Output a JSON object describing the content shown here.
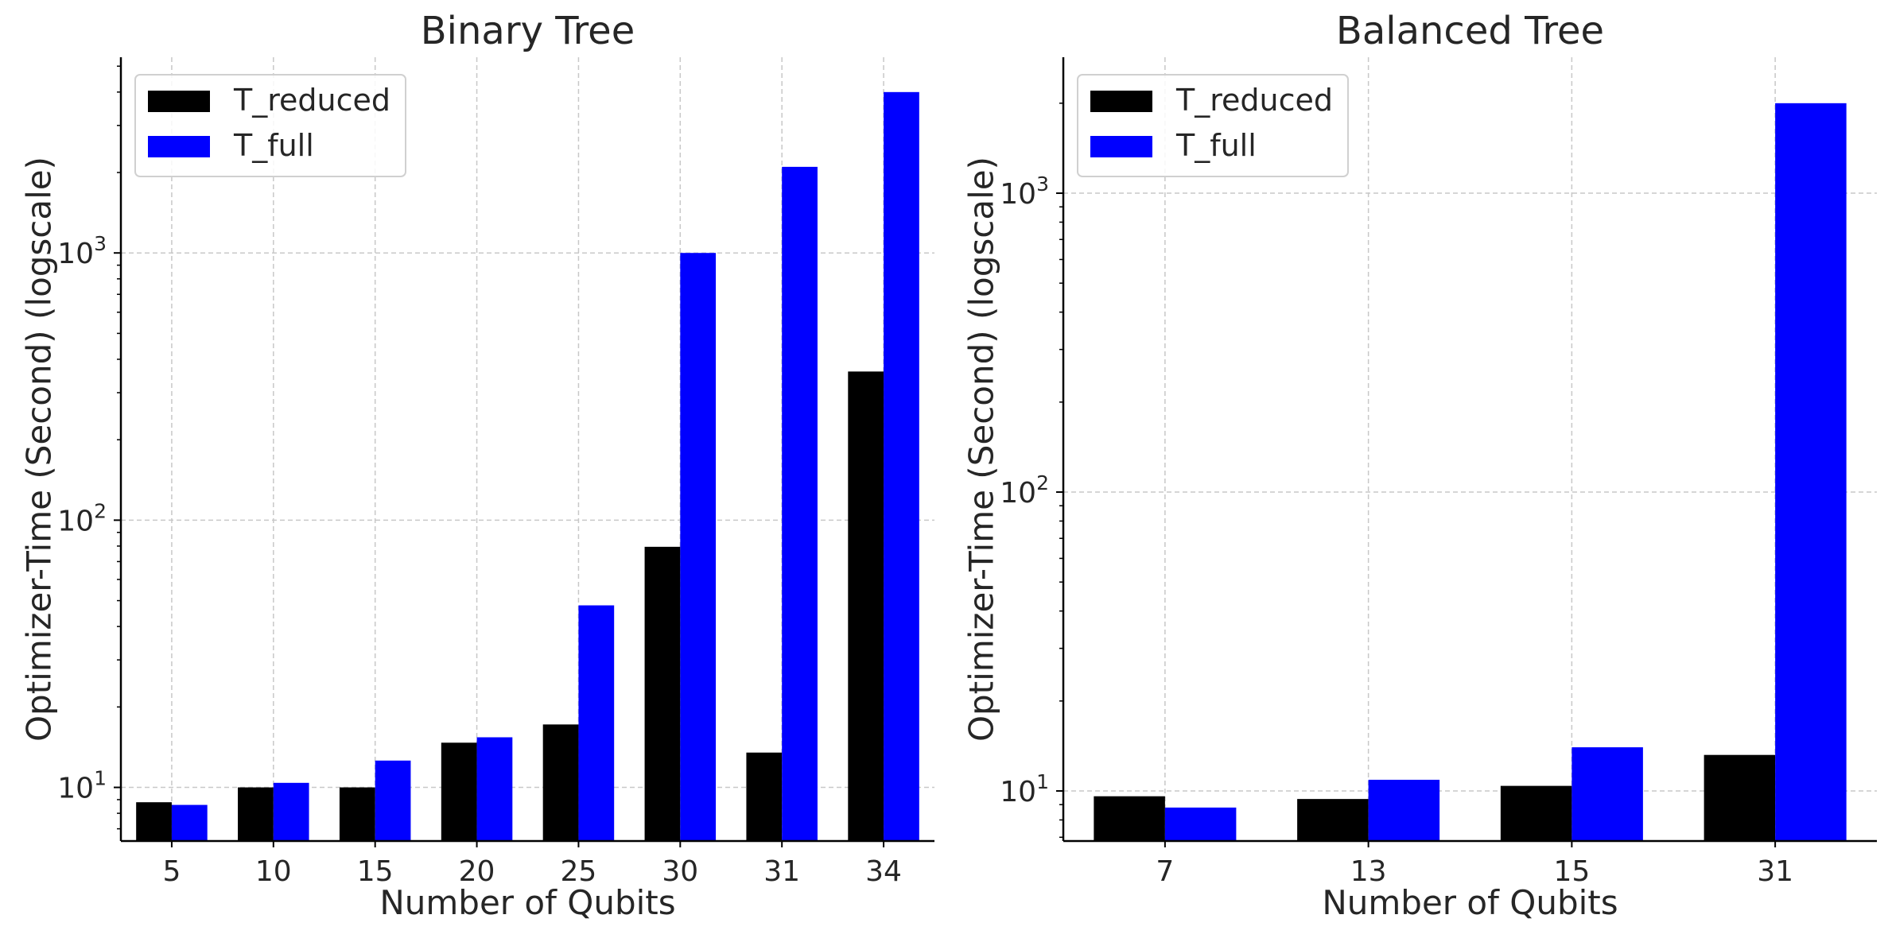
{
  "chart_data": [
    {
      "type": "bar",
      "title": "Binary Tree",
      "xlabel": "Number of Qubits",
      "ylabel": "Optimizer-Time (Second) (logscale)",
      "yscale": "log",
      "ylim": [
        6.3,
        5400
      ],
      "y_ticks": [
        10,
        100,
        1000
      ],
      "y_tick_labels": [
        {
          "base": "10",
          "exp": "1"
        },
        {
          "base": "10",
          "exp": "2"
        },
        {
          "base": "10",
          "exp": "3"
        }
      ],
      "grid": true,
      "legend": "top-left",
      "categories": [
        "5",
        "10",
        "15",
        "20",
        "25",
        "30",
        "31",
        "34"
      ],
      "series": [
        {
          "name": "T_reduced",
          "color": "#000000",
          "values": [
            8.8,
            10.0,
            10.0,
            14.7,
            17.2,
            79.5,
            13.5,
            360
          ]
        },
        {
          "name": "T_full",
          "color": "#0000ff",
          "values": [
            8.6,
            10.4,
            12.6,
            15.4,
            48,
            1000,
            2100,
            4000
          ]
        }
      ]
    },
    {
      "type": "bar",
      "title": "Balanced Tree",
      "xlabel": "Number of Qubits",
      "ylabel": "Optimizer-Time (Second) (logscale)",
      "yscale": "log",
      "ylim": [
        6.8,
        2850
      ],
      "y_ticks": [
        10,
        100,
        1000
      ],
      "y_tick_labels": [
        {
          "base": "10",
          "exp": "1"
        },
        {
          "base": "10",
          "exp": "2"
        },
        {
          "base": "10",
          "exp": "3"
        }
      ],
      "grid": true,
      "legend": "top-left",
      "categories": [
        "7",
        "13",
        "15",
        "31"
      ],
      "series": [
        {
          "name": "T_reduced",
          "color": "#000000",
          "values": [
            9.6,
            9.4,
            10.4,
            13.2
          ]
        },
        {
          "name": "T_full",
          "color": "#0000ff",
          "values": [
            8.8,
            10.9,
            14.0,
            2000
          ]
        }
      ]
    }
  ]
}
